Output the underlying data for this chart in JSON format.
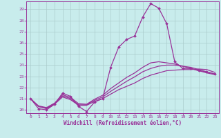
{
  "title": "",
  "xlabel": "Windchill (Refroidissement éolien,°C)",
  "bg_color": "#c8ecec",
  "line_color": "#993399",
  "grid_color": "#aacccc",
  "xlim": [
    -0.5,
    23.5
  ],
  "ylim": [
    19.7,
    29.7
  ],
  "xticks": [
    0,
    1,
    2,
    3,
    4,
    5,
    6,
    7,
    8,
    9,
    10,
    11,
    12,
    13,
    14,
    15,
    16,
    17,
    18,
    19,
    20,
    21,
    22,
    23
  ],
  "yticks": [
    20,
    21,
    22,
    23,
    24,
    25,
    26,
    27,
    28,
    29
  ],
  "line1_x": [
    0,
    1,
    2,
    3,
    4,
    5,
    6,
    7,
    8,
    9,
    10,
    11,
    12,
    13,
    14,
    15,
    16,
    17,
    18,
    19,
    20,
    21,
    22,
    23
  ],
  "line1_y": [
    21.0,
    20.1,
    20.0,
    20.5,
    21.5,
    21.2,
    20.3,
    19.85,
    20.7,
    21.0,
    23.8,
    25.6,
    26.3,
    26.6,
    28.3,
    29.5,
    29.1,
    27.7,
    24.3,
    23.7,
    23.7,
    23.5,
    23.4,
    23.2
  ],
  "line2_x": [
    0,
    1,
    2,
    3,
    4,
    5,
    6,
    7,
    8,
    9,
    10,
    11,
    12,
    13,
    14,
    15,
    16,
    17,
    18,
    19,
    20,
    21,
    22,
    23
  ],
  "line2_y": [
    21.0,
    20.3,
    20.1,
    20.5,
    21.15,
    20.9,
    20.4,
    20.4,
    20.75,
    21.0,
    21.4,
    21.8,
    22.1,
    22.4,
    22.8,
    23.1,
    23.3,
    23.5,
    23.55,
    23.6,
    23.6,
    23.65,
    23.6,
    23.35
  ],
  "line3_x": [
    0,
    1,
    2,
    3,
    4,
    5,
    6,
    7,
    8,
    9,
    10,
    11,
    12,
    13,
    14,
    15,
    16,
    17,
    18,
    19,
    20,
    21,
    22,
    23
  ],
  "line3_y": [
    21.0,
    20.3,
    20.15,
    20.55,
    21.25,
    21.0,
    20.45,
    20.45,
    20.85,
    21.15,
    21.65,
    22.1,
    22.55,
    22.95,
    23.4,
    23.7,
    23.9,
    24.0,
    24.0,
    23.9,
    23.8,
    23.6,
    23.4,
    23.2
  ],
  "line4_x": [
    0,
    1,
    2,
    3,
    4,
    5,
    6,
    7,
    8,
    9,
    10,
    11,
    12,
    13,
    14,
    15,
    16,
    17,
    18,
    19,
    20,
    21,
    22,
    23
  ],
  "line4_y": [
    21.0,
    20.35,
    20.2,
    20.6,
    21.35,
    21.1,
    20.55,
    20.5,
    20.95,
    21.3,
    21.9,
    22.4,
    22.9,
    23.3,
    23.8,
    24.2,
    24.3,
    24.2,
    24.1,
    23.9,
    23.7,
    23.5,
    23.3,
    23.15
  ]
}
